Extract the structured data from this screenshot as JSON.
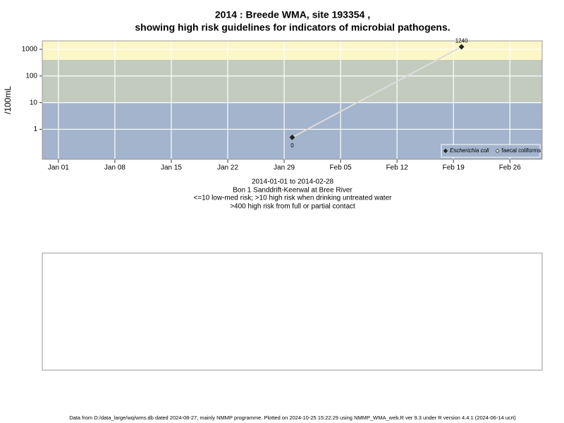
{
  "chart_data": {
    "type": "line",
    "title": "2014 : Breede WMA, site 193354 ,",
    "subtitle": "showing high risk guidelines for indicators of microbial pathogens.",
    "y_label": "/100mL",
    "x": [
      "2014-01-30",
      "2014-02-20"
    ],
    "series": [
      {
        "name": "Escherichia coli",
        "color": "#222222",
        "line_color": "#dcdcdc",
        "marker": "filled",
        "values": [
          0.5,
          1240
        ],
        "value_labels": [
          "0",
          "1240"
        ]
      },
      {
        "name": "faecal coliforms",
        "color": "#555555",
        "marker": "open",
        "values": [
          null,
          null
        ]
      }
    ],
    "xlim": [
      "2013-12-30",
      "2014-03-02"
    ],
    "xticks": [
      {
        "value": "2014-01-01",
        "label": "Jan 01"
      },
      {
        "value": "2014-01-08",
        "label": "Jan 08"
      },
      {
        "value": "2014-01-15",
        "label": "Jan 15"
      },
      {
        "value": "2014-01-22",
        "label": "Jan 22"
      },
      {
        "value": "2014-01-29",
        "label": "Jan 29"
      },
      {
        "value": "2014-02-05",
        "label": "Feb 05"
      },
      {
        "value": "2014-02-12",
        "label": "Feb 12"
      },
      {
        "value": "2014-02-19",
        "label": "Feb 19"
      },
      {
        "value": "2014-02-26",
        "label": "Feb 26"
      }
    ],
    "ylim": [
      0.075,
      2070
    ],
    "yticks": [
      1,
      10,
      100,
      1000
    ],
    "log_y": true,
    "grid": true,
    "legend": "bottom-right",
    "bands": [
      {
        "from": 0.075,
        "to": 10,
        "color": "#a3b4cc"
      },
      {
        "from": 10,
        "to": 400,
        "color": "#c3cbbf"
      },
      {
        "from": 400,
        "to": 2070,
        "color": "#fdf7c8"
      }
    ],
    "caption": [
      "2014-01-01 to 2014-02-28",
      "Bon 1 Sanddrift-Keerwal at Bree River",
      "<=10 low-med risk; >10 high risk when drinking untreated water",
      ">400 high risk from full or partial contact"
    ],
    "footer": "Data from D:/data_large/wq/wms.db dated 2024-08-27, mainly NMMP programme. Plotted on 2024-10-25 15:22:29 using NMMP_WMA_web.R ver 9.3 under R version 4.4.1 (2024-06-14 ucrt)"
  }
}
